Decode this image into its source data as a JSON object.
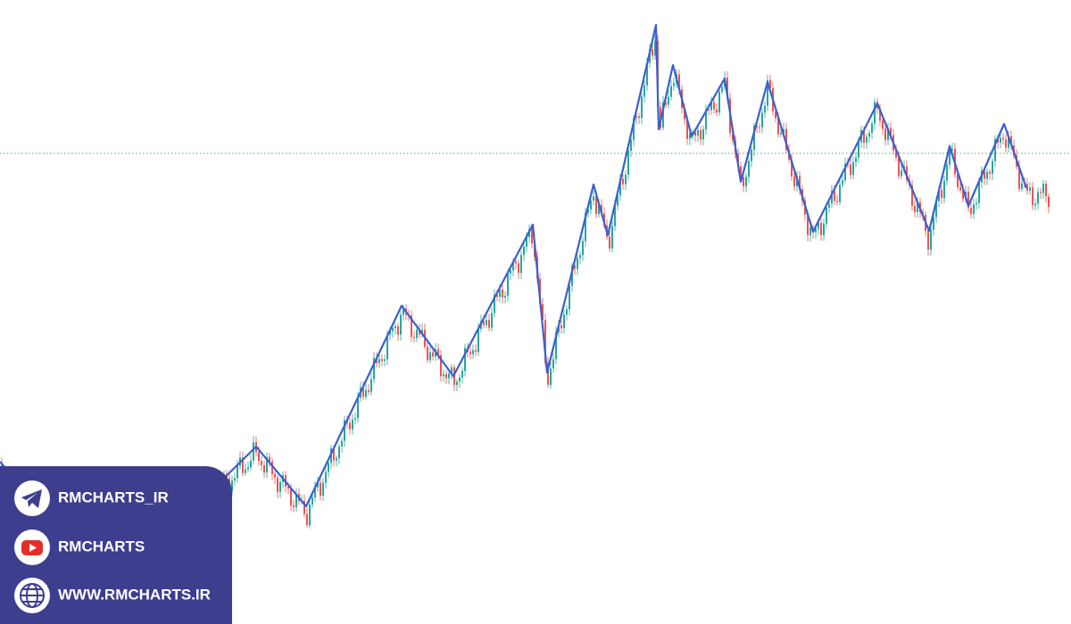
{
  "social": {
    "links": [
      {
        "label": "RMCHARTS_IR"
      },
      {
        "label": "RMCHARTS"
      },
      {
        "label": "WWW.RMCHARTS.IR"
      }
    ]
  }
}
